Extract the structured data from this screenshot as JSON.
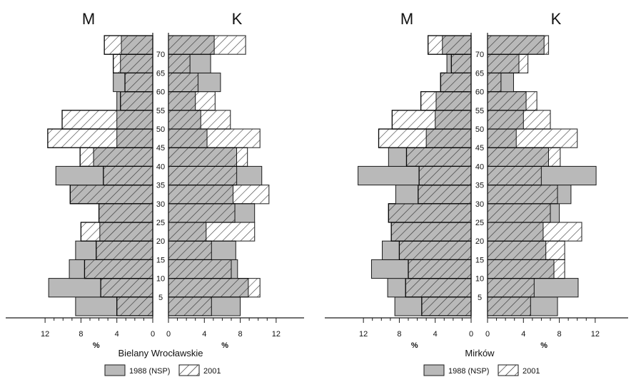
{
  "colors": {
    "fill_1988": "#b9b9b9",
    "stroke": "#1a1a1a"
  },
  "legend": {
    "label_1988": "1988 (NSP)",
    "label_2001": "2001"
  },
  "percent_label": "%",
  "male_label": "M",
  "female_label": "K",
  "chart_data": [
    {
      "type": "bar",
      "orientation": "horizontal-pyramid",
      "title": "Bielany Wrocławskie",
      "age_labels": [
        "5",
        "10",
        "15",
        "20",
        "25",
        "30",
        "35",
        "40",
        "45",
        "50",
        "55",
        "60",
        "65",
        "70"
      ],
      "xticks": [
        "12",
        "8",
        "4",
        "0"
      ],
      "categories": [
        "0-4",
        "5-9",
        "10-14",
        "15-19",
        "20-24",
        "25-29",
        "30-34",
        "35-39",
        "40-44",
        "45-49",
        "50-54",
        "55-59",
        "60-64",
        "65-69",
        "70+"
      ],
      "xlim": [
        0,
        14
      ],
      "series": [
        {
          "name": "1988 (NSP)",
          "sex": "M",
          "values": [
            8.6,
            11.6,
            9.3,
            8.6,
            5.9,
            6.0,
            9.2,
            10.8,
            6.6,
            4.0,
            4.0,
            4.0,
            4.4,
            3.6,
            3.5
          ]
        },
        {
          "name": "2001",
          "sex": "M",
          "values": [
            4.0,
            5.8,
            7.6,
            6.3,
            8.0,
            6.0,
            9.2,
            5.5,
            8.1,
            11.7,
            10.1,
            3.6,
            3.1,
            4.4,
            5.4
          ]
        },
        {
          "name": "1988 (NSP)",
          "sex": "K",
          "values": [
            8.0,
            8.9,
            7.7,
            7.5,
            4.2,
            9.6,
            7.2,
            10.4,
            7.6,
            4.3,
            3.6,
            3.0,
            5.8,
            4.7,
            5.1
          ]
        },
        {
          "name": "2001",
          "sex": "K",
          "values": [
            4.8,
            10.2,
            7.0,
            4.8,
            9.6,
            7.4,
            11.2,
            7.6,
            8.8,
            10.2,
            6.9,
            5.2,
            3.3,
            2.4,
            8.6
          ]
        }
      ]
    },
    {
      "type": "bar",
      "orientation": "horizontal-pyramid",
      "title": "Mirków",
      "age_labels": [
        "5",
        "10",
        "15",
        "20",
        "25",
        "30",
        "35",
        "40",
        "45",
        "50",
        "55",
        "60",
        "65",
        "70"
      ],
      "xticks": [
        "12",
        "8",
        "4",
        "0"
      ],
      "categories": [
        "0-4",
        "5-9",
        "10-14",
        "15-19",
        "20-24",
        "25-29",
        "30-34",
        "35-39",
        "40-44",
        "45-49",
        "50-54",
        "55-59",
        "60-64",
        "65-69",
        "70+"
      ],
      "xlim": [
        0,
        14
      ],
      "series": [
        {
          "name": "1988 (NSP)",
          "sex": "M",
          "values": [
            8.5,
            9.3,
            11.1,
            9.9,
            8.9,
            9.2,
            8.4,
            12.6,
            9.2,
            5.0,
            4.0,
            3.9,
            3.4,
            2.7,
            3.2
          ]
        },
        {
          "name": "2001",
          "sex": "M",
          "values": [
            5.5,
            7.3,
            7.0,
            8.0,
            8.9,
            9.2,
            5.9,
            5.8,
            7.2,
            10.3,
            8.8,
            5.6,
            3.4,
            2.2,
            4.8
          ]
        },
        {
          "name": "1988 (NSP)",
          "sex": "K",
          "values": [
            7.8,
            10.1,
            7.4,
            6.5,
            6.2,
            8.0,
            9.3,
            12.1,
            6.8,
            3.2,
            4.0,
            4.3,
            2.9,
            3.5,
            6.3
          ]
        },
        {
          "name": "2001",
          "sex": "K",
          "values": [
            4.8,
            5.2,
            8.6,
            8.6,
            10.5,
            7.0,
            7.8,
            6.0,
            8.1,
            10.0,
            7.0,
            5.5,
            1.5,
            4.5,
            6.8
          ]
        }
      ]
    }
  ]
}
